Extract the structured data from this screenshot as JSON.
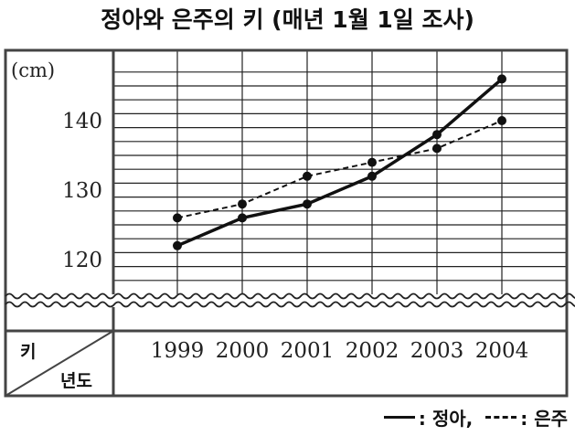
{
  "chart_data": {
    "type": "line",
    "title": "정아와 은주의 키 (매년 1월 1일 조사)",
    "ylabel": "(cm)",
    "header_row_label": "키",
    "header_col_label": "년도",
    "categories": [
      "1999",
      "2000",
      "2001",
      "2002",
      "2003",
      "2004"
    ],
    "y_ticks": [
      "120",
      "130",
      "140"
    ],
    "ylim": [
      115,
      147
    ],
    "y_axis_break": true,
    "grid": true,
    "series": [
      {
        "name": "정아",
        "style": "solid",
        "values": [
          122,
          126,
          128,
          132,
          138,
          146
        ]
      },
      {
        "name": "은주",
        "style": "dashed",
        "values": [
          126,
          128,
          132,
          134,
          136,
          140
        ]
      }
    ],
    "legend": {
      "placement": "bottom-right",
      "solid_text": ": 정아,",
      "dashed_text": ": 은주"
    }
  }
}
